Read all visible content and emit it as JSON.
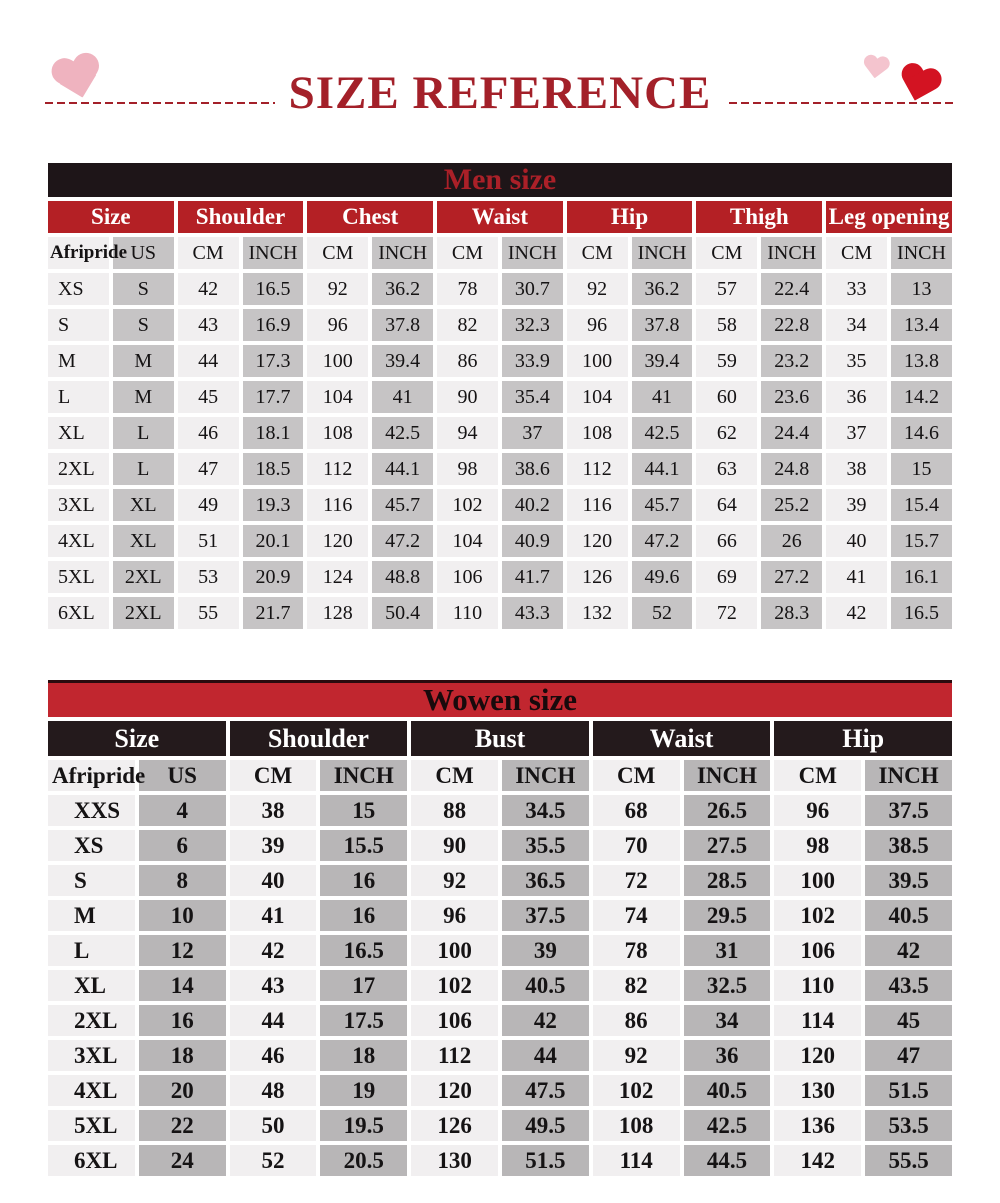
{
  "header": {
    "title": "SIZE REFERENCE"
  },
  "icons": {
    "left": "pink-heart",
    "right_small": "pink-heart",
    "right_large": "red-heart"
  },
  "colors": {
    "title-red": "#a32029",
    "men-bar-bg": "#1e1518",
    "men-bar-text": "#ab2028",
    "men-group-bg": "#b42025",
    "women-bar-bg": "#c1262f",
    "women-group-bg": "#241a1c",
    "cell-light": "#f1eff0",
    "cell-dark-men": "#c6c4c5",
    "cell-dark-women": "#b8b6b7"
  },
  "men_table": {
    "title": "Men size",
    "groups": [
      "Size",
      "Shoulder",
      "Chest",
      "Waist",
      "Hip",
      "Thigh",
      "Leg opening"
    ],
    "subheaders": [
      "Afripride",
      "US",
      "CM",
      "INCH",
      "CM",
      "INCH",
      "CM",
      "INCH",
      "CM",
      "INCH",
      "CM",
      "INCH",
      "CM",
      "INCH"
    ],
    "rows": [
      [
        "XS",
        "S",
        "42",
        "16.5",
        "92",
        "36.2",
        "78",
        "30.7",
        "92",
        "36.2",
        "57",
        "22.4",
        "33",
        "13"
      ],
      [
        "S",
        "S",
        "43",
        "16.9",
        "96",
        "37.8",
        "82",
        "32.3",
        "96",
        "37.8",
        "58",
        "22.8",
        "34",
        "13.4"
      ],
      [
        "M",
        "M",
        "44",
        "17.3",
        "100",
        "39.4",
        "86",
        "33.9",
        "100",
        "39.4",
        "59",
        "23.2",
        "35",
        "13.8"
      ],
      [
        "L",
        "M",
        "45",
        "17.7",
        "104",
        "41",
        "90",
        "35.4",
        "104",
        "41",
        "60",
        "23.6",
        "36",
        "14.2"
      ],
      [
        "XL",
        "L",
        "46",
        "18.1",
        "108",
        "42.5",
        "94",
        "37",
        "108",
        "42.5",
        "62",
        "24.4",
        "37",
        "14.6"
      ],
      [
        "2XL",
        "L",
        "47",
        "18.5",
        "112",
        "44.1",
        "98",
        "38.6",
        "112",
        "44.1",
        "63",
        "24.8",
        "38",
        "15"
      ],
      [
        "3XL",
        "XL",
        "49",
        "19.3",
        "116",
        "45.7",
        "102",
        "40.2",
        "116",
        "45.7",
        "64",
        "25.2",
        "39",
        "15.4"
      ],
      [
        "4XL",
        "XL",
        "51",
        "20.1",
        "120",
        "47.2",
        "104",
        "40.9",
        "120",
        "47.2",
        "66",
        "26",
        "40",
        "15.7"
      ],
      [
        "5XL",
        "2XL",
        "53",
        "20.9",
        "124",
        "48.8",
        "106",
        "41.7",
        "126",
        "49.6",
        "69",
        "27.2",
        "41",
        "16.1"
      ],
      [
        "6XL",
        "2XL",
        "55",
        "21.7",
        "128",
        "50.4",
        "110",
        "43.3",
        "132",
        "52",
        "72",
        "28.3",
        "42",
        "16.5"
      ]
    ]
  },
  "women_table": {
    "title": "Wowen size",
    "groups": [
      "Size",
      "Shoulder",
      "Bust",
      "Waist",
      "Hip"
    ],
    "subheaders": [
      "Afripride",
      "US",
      "CM",
      "INCH",
      "CM",
      "INCH",
      "CM",
      "INCH",
      "CM",
      "INCH"
    ],
    "rows": [
      [
        "XXS",
        "4",
        "38",
        "15",
        "88",
        "34.5",
        "68",
        "26.5",
        "96",
        "37.5"
      ],
      [
        "XS",
        "6",
        "39",
        "15.5",
        "90",
        "35.5",
        "70",
        "27.5",
        "98",
        "38.5"
      ],
      [
        "S",
        "8",
        "40",
        "16",
        "92",
        "36.5",
        "72",
        "28.5",
        "100",
        "39.5"
      ],
      [
        "M",
        "10",
        "41",
        "16",
        "96",
        "37.5",
        "74",
        "29.5",
        "102",
        "40.5"
      ],
      [
        "L",
        "12",
        "42",
        "16.5",
        "100",
        "39",
        "78",
        "31",
        "106",
        "42"
      ],
      [
        "XL",
        "14",
        "43",
        "17",
        "102",
        "40.5",
        "82",
        "32.5",
        "110",
        "43.5"
      ],
      [
        "2XL",
        "16",
        "44",
        "17.5",
        "106",
        "42",
        "86",
        "34",
        "114",
        "45"
      ],
      [
        "3XL",
        "18",
        "46",
        "18",
        "112",
        "44",
        "92",
        "36",
        "120",
        "47"
      ],
      [
        "4XL",
        "20",
        "48",
        "19",
        "120",
        "47.5",
        "102",
        "40.5",
        "130",
        "51.5"
      ],
      [
        "5XL",
        "22",
        "50",
        "19.5",
        "126",
        "49.5",
        "108",
        "42.5",
        "136",
        "53.5"
      ],
      [
        "6XL",
        "24",
        "52",
        "20.5",
        "130",
        "51.5",
        "114",
        "44.5",
        "142",
        "55.5"
      ]
    ]
  }
}
